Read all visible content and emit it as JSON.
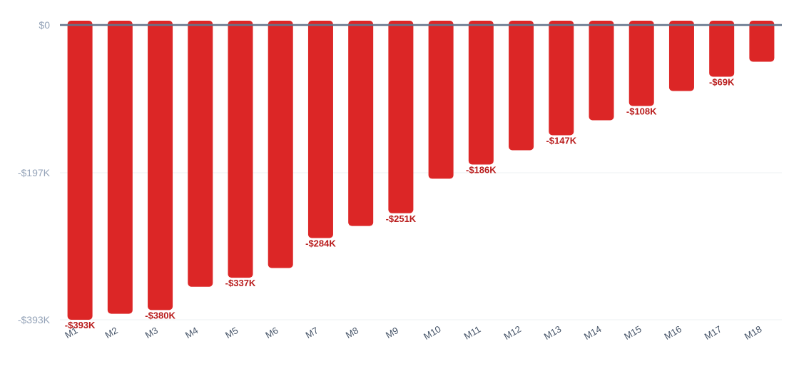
{
  "chart_data": {
    "type": "bar",
    "title": "",
    "xlabel": "",
    "ylabel": "",
    "categories": [
      "M1",
      "M2",
      "M3",
      "M4",
      "M5",
      "M6",
      "M7",
      "M8",
      "M9",
      "M10",
      "M11",
      "M12",
      "M13",
      "M14",
      "M15",
      "M16",
      "M17",
      "M18"
    ],
    "values": [
      -393,
      -385,
      -380,
      -349,
      -337,
      -324,
      -284,
      -268,
      -251,
      -205,
      -186,
      -167,
      -147,
      -127,
      -108,
      -88,
      -69,
      -49
    ],
    "value_units": "thousands USD",
    "data_labels": [
      "-$393K",
      "",
      "-$380K",
      "",
      "-$337K",
      "",
      "-$284K",
      "",
      "-$251K",
      "",
      "-$186K",
      "",
      "-$147K",
      "",
      "-$108K",
      "",
      "-$69K",
      ""
    ],
    "y_ticks": [
      0,
      -197,
      -393
    ],
    "y_tick_labels": [
      "$0",
      "-$197K",
      "-$393K"
    ],
    "ylim": [
      -393,
      0
    ],
    "grid": true,
    "legend": "none",
    "colors": {
      "bar": "#dc2626",
      "label": "#b91c1c",
      "baseline": "#64748b",
      "grid": "#eef0f3"
    }
  }
}
